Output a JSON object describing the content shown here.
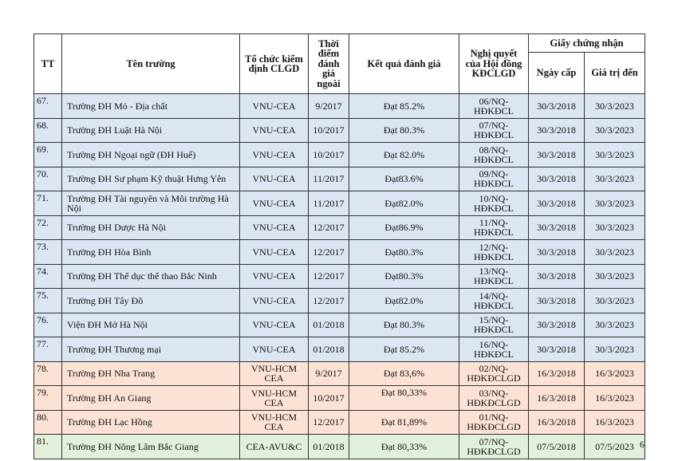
{
  "headers": {
    "tt": "TT",
    "name": "Tên trường",
    "org": "Tổ chức kiểm định CLGD",
    "time": "Thời điểm đánh giá ngoài",
    "result": "Kết quả đánh giá",
    "resolution": "Nghị quyết của Hội đồng KĐCLGD",
    "cert": "Giấy chứng nhận",
    "issued": "Ngày cấp",
    "valid": "Giá trị đến"
  },
  "colors": {
    "blue": "#dce6f2",
    "pink": "#fbe2d5",
    "green": "#e2efda"
  },
  "rows": [
    {
      "tt": "67.",
      "name": "Trường ĐH Mỏ - Địa chất",
      "org": "VNU-CEA",
      "time": "9/2017",
      "result": "Đạt 85.2%",
      "res": "06/NQ-HĐKĐCL",
      "issued": "30/3/2018",
      "valid": "30/3/2023",
      "color": "blue"
    },
    {
      "tt": "68.",
      "name": "Trường ĐH Luật Hà Nội",
      "org": "VNU-CEA",
      "time": "10/2017",
      "result": "Đạt 80.3%",
      "res": "07/NQ-HĐKĐCL",
      "issued": "30/3/2018",
      "valid": "30/3/2023",
      "color": "blue"
    },
    {
      "tt": "69.",
      "name": "Trường ĐH Ngoại ngữ (ĐH Huế)",
      "org": "VNU-CEA",
      "time": "10/2017",
      "result": "Đạt 82.0%",
      "res": "08/NQ-HĐKĐCL",
      "issued": "30/3/2018",
      "valid": "30/3/2023",
      "color": "blue"
    },
    {
      "tt": "70.",
      "name": "Trường ĐH Sư phạm Kỹ thuật Hưng Yên",
      "org": "VNU-CEA",
      "time": "11/2017",
      "result": "Đạt83.6%",
      "res": "09/NQ-HĐKĐCL",
      "issued": "30/3/2018",
      "valid": "30/3/2023",
      "color": "blue"
    },
    {
      "tt": "71.",
      "name": "Trường ĐH Tài nguyên và Môi trường Hà Nội",
      "org": "VNU-CEA",
      "time": "11/2017",
      "result": "Đạt82.0%",
      "res": "10/NQ-HĐKĐCL",
      "issued": "30/3/2018",
      "valid": "30/3/2023",
      "color": "blue"
    },
    {
      "tt": "72.",
      "name": "Trường ĐH Dược Hà Nội",
      "org": "VNU-CEA",
      "time": "12/2017",
      "result": "Đạt86.9%",
      "res": "11/NQ-HĐKĐCL",
      "issued": "30/3/2018",
      "valid": "30/3/2023",
      "color": "blue"
    },
    {
      "tt": "73.",
      "name": "Trường ĐH Hòa Bình",
      "org": "VNU-CEA",
      "time": "12/2017",
      "result": "Đạt80.3%",
      "res": "12/NQ-HĐKĐCL",
      "issued": "30/3/2018",
      "valid": "30/3/2023",
      "color": "blue"
    },
    {
      "tt": "74.",
      "name": "Trường ĐH Thể dục thể thao Bắc Ninh",
      "org": "VNU-CEA",
      "time": "12/2017",
      "result": "Đạt80.3%",
      "res": "13/NQ-HĐKĐCL",
      "issued": "30/3/2018",
      "valid": "30/3/2023",
      "color": "blue"
    },
    {
      "tt": "75.",
      "name": "Trường ĐH Tây Đô",
      "org": "VNU-CEA",
      "time": "12/2017",
      "result": "Đạt82.0%",
      "res": "14/NQ-HĐKĐCL",
      "issued": "30/3/2018",
      "valid": "30/3/2023",
      "color": "blue"
    },
    {
      "tt": "76.",
      "name": "Viện ĐH Mở Hà Nội",
      "org": "VNU-CEA",
      "time": "01/2018",
      "result": "Đạt 80.3%",
      "res": "15/NQ-HĐKĐCL",
      "issued": "30/3/2018",
      "valid": "30/3/2023",
      "color": "blue"
    },
    {
      "tt": "77.",
      "name": "Trường ĐH Thương mại",
      "org": "VNU-CEA",
      "time": "01/2018",
      "result": "Đạt 85.2%",
      "res": "16/NQ-HĐKĐCL",
      "issued": "30/3/2018",
      "valid": "30/3/2023",
      "color": "blue"
    },
    {
      "tt": "78.",
      "name": "Trường ĐH Nha Trang",
      "org": "VNU-HCM CEA",
      "time": "9/2017",
      "result": "Đạt 83,6%",
      "res": "02/NQ-HĐKĐCLGD",
      "issued": "16/3/2018",
      "valid": "16/3/2023",
      "color": "pink"
    },
    {
      "tt": "79.",
      "name": "Trường ĐH An Giang",
      "org": "VNU-HCM CEA",
      "time": "10/2017",
      "result": "Đạt 80,33%",
      "res": "03/NQ-HĐKĐCLGD",
      "issued": "16/3/2018",
      "valid": "16/3/2023",
      "color": "pink",
      "top": true
    },
    {
      "tt": "80.",
      "name": "Trường ĐH Lạc Hồng",
      "org": "VNU-HCM CEA",
      "time": "12/2017",
      "result": "Đạt 81,89%",
      "res": "01/NQ-HĐKĐCLGD",
      "issued": "16/3/2018",
      "valid": "16/3/2023",
      "color": "pink"
    },
    {
      "tt": "81.",
      "name": "Trường ĐH Nông Lâm Bắc Giang",
      "org": "CEA-AVU&C",
      "time": "01/2018",
      "result": "Đạt 80,33%",
      "res": "07/NQ-HĐKĐCLGD",
      "issued": "07/5/2018",
      "valid": "07/5/2023",
      "color": "green"
    }
  ],
  "page_number": "6"
}
